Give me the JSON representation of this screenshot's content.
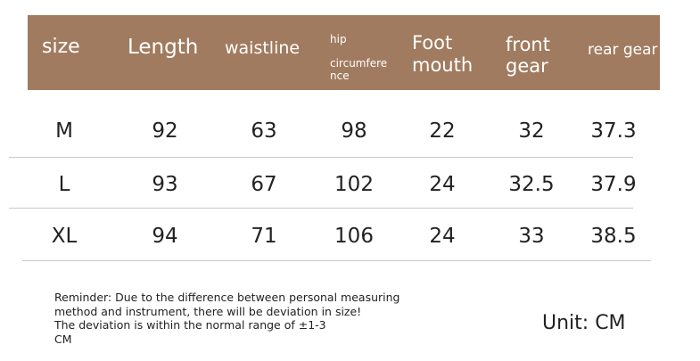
{
  "table": {
    "header": [
      [
        "size"
      ],
      [
        "Length"
      ],
      [
        "waistline"
      ],
      [
        "hip",
        "circumfere",
        "nce"
      ],
      [
        "Foot",
        "mouth"
      ],
      [
        "front",
        "gear"
      ],
      [
        "rear gear"
      ]
    ],
    "rows": [
      [
        "M",
        92,
        63,
        98,
        22,
        32,
        37.3
      ],
      [
        "L",
        93,
        67,
        102,
        24,
        32.5,
        37.9
      ],
      [
        "XL",
        94,
        71,
        106,
        24,
        33,
        38.5
      ]
    ]
  },
  "reminder": [
    "Reminder: Due to the difference between personal measuring",
    "method and instrument, there will be deviation in size!",
    "The deviation is within the normal range of ±1-3",
    "CM"
  ],
  "unit": "Unit: CM"
}
